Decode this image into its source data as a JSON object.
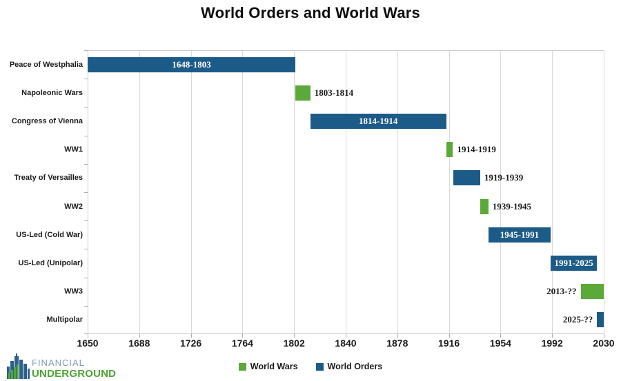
{
  "title": "World Orders and World Wars",
  "chart_data": {
    "type": "bar",
    "subtype": "horizontal-gantt-timeline",
    "title": "World Orders and World Wars",
    "xlabel": "",
    "ylabel": "",
    "grid": true,
    "x_axis": {
      "min": 1650,
      "max": 2030,
      "tick_interval": 38,
      "ticks": [
        1650,
        1688,
        1726,
        1764,
        1802,
        1840,
        1878,
        1916,
        1954,
        1992,
        2030
      ]
    },
    "colors": {
      "World Wars": "#5BA938",
      "World Orders": "#1C5A87"
    },
    "legend": {
      "position": "bottom",
      "items": [
        {
          "label": "World Wars",
          "series": "World Wars"
        },
        {
          "label": "World Orders",
          "series": "World Orders"
        }
      ]
    },
    "rows": [
      {
        "category": "Peace of Westphalia",
        "series": "World Orders",
        "start": 1648,
        "end": 1803,
        "label": "1648-1803",
        "label_pos": "inside"
      },
      {
        "category": "Napoleonic Wars",
        "series": "World Wars",
        "start": 1803,
        "end": 1814,
        "label": "1803-1814",
        "label_pos": "right"
      },
      {
        "category": "Congress of Vienna",
        "series": "World Orders",
        "start": 1814,
        "end": 1914,
        "label": "1814-1914",
        "label_pos": "inside"
      },
      {
        "category": "WW1",
        "series": "World Wars",
        "start": 1914,
        "end": 1919,
        "label": "1914-1919",
        "label_pos": "right"
      },
      {
        "category": "Treaty of Versailles",
        "series": "World Orders",
        "start": 1919,
        "end": 1939,
        "label": "1919-1939",
        "label_pos": "right"
      },
      {
        "category": "WW2",
        "series": "World Wars",
        "start": 1939,
        "end": 1945,
        "label": "1939-1945",
        "label_pos": "right"
      },
      {
        "category": "US-Led (Cold War)",
        "series": "World Orders",
        "start": 1945,
        "end": 1991,
        "label": "1945-1991",
        "label_pos": "inside"
      },
      {
        "category": "US-Led (Unipolar)",
        "series": "World Orders",
        "start": 1991,
        "end": 2025,
        "label": "1991-2025",
        "label_pos": "inside"
      },
      {
        "category": "WW3",
        "series": "World Wars",
        "start": 2013,
        "end": null,
        "label": "2013-??",
        "label_pos": "left"
      },
      {
        "category": "Multipolar",
        "series": "World Orders",
        "start": 2025,
        "end": null,
        "label": "2025-??",
        "label_pos": "left"
      }
    ]
  },
  "footer": {
    "logo_line1": "FINANCIAL",
    "logo_line2": "UNDERGROUND",
    "logo_colors": {
      "line1": "#7E9DBA",
      "line2": "#4CA433",
      "icon_blue": "#2C5F8A",
      "icon_green": "#52A63A"
    }
  }
}
